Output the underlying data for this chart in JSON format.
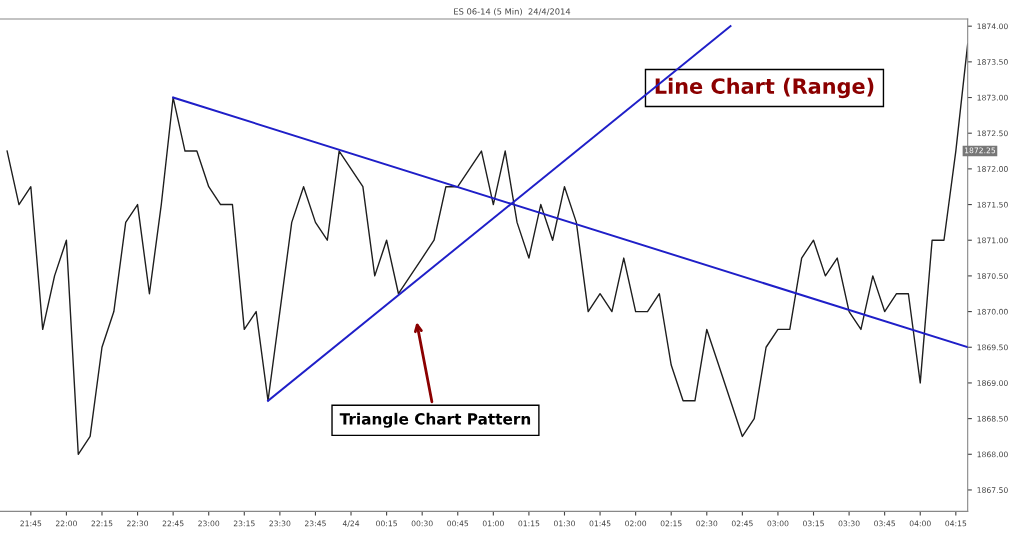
{
  "chart_data": {
    "type": "line",
    "title": "ES 06-14 (5 Min)  24/4/2014",
    "xlim": [
      "2014-04-23T21:32",
      "2014-04-24T04:20"
    ],
    "ylim": [
      1867.2,
      1874.1
    ],
    "xticks": [
      {
        "value": "2014-04-23T21:45",
        "label": "21:45"
      },
      {
        "value": "2014-04-23T22:00",
        "label": "22:00"
      },
      {
        "value": "2014-04-23T22:15",
        "label": "22:15"
      },
      {
        "value": "2014-04-23T22:30",
        "label": "22:30"
      },
      {
        "value": "2014-04-23T22:45",
        "label": "22:45"
      },
      {
        "value": "2014-04-23T23:00",
        "label": "23:00"
      },
      {
        "value": "2014-04-23T23:15",
        "label": "23:15"
      },
      {
        "value": "2014-04-23T23:30",
        "label": "23:30"
      },
      {
        "value": "2014-04-23T23:45",
        "label": "23:45"
      },
      {
        "value": "2014-04-24T00:00",
        "label": "4/24"
      },
      {
        "value": "2014-04-24T00:15",
        "label": "00:15"
      },
      {
        "value": "2014-04-24T00:30",
        "label": "00:30"
      },
      {
        "value": "2014-04-24T00:45",
        "label": "00:45"
      },
      {
        "value": "2014-04-24T01:00",
        "label": "01:00"
      },
      {
        "value": "2014-04-24T01:15",
        "label": "01:15"
      },
      {
        "value": "2014-04-24T01:30",
        "label": "01:30"
      },
      {
        "value": "2014-04-24T01:45",
        "label": "01:45"
      },
      {
        "value": "2014-04-24T02:00",
        "label": "02:00"
      },
      {
        "value": "2014-04-24T02:15",
        "label": "02:15"
      },
      {
        "value": "2014-04-24T02:30",
        "label": "02:30"
      },
      {
        "value": "2014-04-24T02:45",
        "label": "02:45"
      },
      {
        "value": "2014-04-24T03:00",
        "label": "03:00"
      },
      {
        "value": "2014-04-24T03:15",
        "label": "03:15"
      },
      {
        "value": "2014-04-24T03:30",
        "label": "03:30"
      },
      {
        "value": "2014-04-24T03:45",
        "label": "03:45"
      },
      {
        "value": "2014-04-24T04:00",
        "label": "04:00"
      },
      {
        "value": "2014-04-24T04:15",
        "label": "04:15"
      }
    ],
    "yticks": [
      {
        "value": 1867.5,
        "label": "1867.50"
      },
      {
        "value": 1868,
        "label": "1868.00"
      },
      {
        "value": 1868.5,
        "label": "1868.50"
      },
      {
        "value": 1869,
        "label": "1869.00"
      },
      {
        "value": 1869.5,
        "label": "1869.50"
      },
      {
        "value": 1870,
        "label": "1870.00"
      },
      {
        "value": 1870.5,
        "label": "1870.50"
      },
      {
        "value": 1871,
        "label": "1871.00"
      },
      {
        "value": 1871.5,
        "label": "1871.50"
      },
      {
        "value": 1872,
        "label": "1872.00"
      },
      {
        "value": 1872.5,
        "label": "1872.50"
      },
      {
        "value": 1873,
        "label": "1873.00"
      },
      {
        "value": 1873.5,
        "label": "1873.50"
      },
      {
        "value": 1874,
        "label": "1874.00"
      }
    ],
    "x": [
      "2014-04-23T21:35",
      "2014-04-23T21:40",
      "2014-04-23T21:45",
      "2014-04-23T21:50",
      "2014-04-23T21:55",
      "2014-04-23T22:00",
      "2014-04-23T22:05",
      "2014-04-23T22:10",
      "2014-04-23T22:15",
      "2014-04-23T22:20",
      "2014-04-23T22:25",
      "2014-04-23T22:30",
      "2014-04-23T22:35",
      "2014-04-23T22:40",
      "2014-04-23T22:45",
      "2014-04-23T22:50",
      "2014-04-23T22:55",
      "2014-04-23T23:00",
      "2014-04-23T23:05",
      "2014-04-23T23:10",
      "2014-04-23T23:15",
      "2014-04-23T23:20",
      "2014-04-23T23:25",
      "2014-04-23T23:30",
      "2014-04-23T23:35",
      "2014-04-23T23:40",
      "2014-04-23T23:45",
      "2014-04-23T23:50",
      "2014-04-23T23:55",
      "2014-04-24T00:00",
      "2014-04-24T00:05",
      "2014-04-24T00:10",
      "2014-04-24T00:15",
      "2014-04-24T00:20",
      "2014-04-24T00:25",
      "2014-04-24T00:30",
      "2014-04-24T00:35",
      "2014-04-24T00:40",
      "2014-04-24T00:45",
      "2014-04-24T00:50",
      "2014-04-24T00:55",
      "2014-04-24T01:00",
      "2014-04-24T01:05",
      "2014-04-24T01:10",
      "2014-04-24T01:15",
      "2014-04-24T01:20",
      "2014-04-24T01:25",
      "2014-04-24T01:30",
      "2014-04-24T01:35",
      "2014-04-24T01:40",
      "2014-04-24T01:45",
      "2014-04-24T01:50",
      "2014-04-24T01:55",
      "2014-04-24T02:00",
      "2014-04-24T02:05",
      "2014-04-24T02:10",
      "2014-04-24T02:15",
      "2014-04-24T02:20",
      "2014-04-24T02:25",
      "2014-04-24T02:30",
      "2014-04-24T02:35",
      "2014-04-24T02:40",
      "2014-04-24T02:45",
      "2014-04-24T02:50",
      "2014-04-24T02:55",
      "2014-04-24T03:00",
      "2014-04-24T03:05",
      "2014-04-24T03:10",
      "2014-04-24T03:15",
      "2014-04-24T03:20",
      "2014-04-24T03:25",
      "2014-04-24T03:30",
      "2014-04-24T03:35",
      "2014-04-24T03:40",
      "2014-04-24T03:45",
      "2014-04-24T03:50",
      "2014-04-24T03:55",
      "2014-04-24T04:00",
      "2014-04-24T04:05",
      "2014-04-24T04:10",
      "2014-04-24T04:15",
      "2014-04-24T04:20"
    ],
    "series": [
      {
        "color": "#1e1e1e",
        "values": [
          1872.25,
          1871.5,
          1871.75,
          1869.75,
          1870.5,
          1871.0,
          1868.0,
          1868.25,
          1869.5,
          1870.0,
          1871.25,
          1871.5,
          1870.25,
          1871.5,
          1873.0,
          1872.25,
          1872.25,
          1871.75,
          1871.5,
          1871.5,
          1869.75,
          1870.0,
          1868.75,
          1870.0,
          1871.25,
          1871.75,
          1871.25,
          1871.0,
          1872.25,
          1872.0,
          1871.75,
          1870.5,
          1871.0,
          1870.25,
          1870.5,
          1870.75,
          1871.0,
          1871.75,
          1871.75,
          1872.0,
          1872.25,
          1871.5,
          1872.25,
          1871.25,
          1870.75,
          1871.5,
          1871.0,
          1871.75,
          1871.25,
          1870.0,
          1870.25,
          1870.0,
          1870.75,
          1870.0,
          1870.0,
          1870.25,
          1869.25,
          1868.75,
          1868.75,
          1869.75,
          1869.25,
          1868.75,
          1868.25,
          1868.5,
          1869.5,
          1869.75,
          1869.75,
          1870.75,
          1871.0,
          1870.5,
          1870.75,
          1870.0,
          1869.75,
          1870.5,
          1870.0,
          1870.25,
          1870.25,
          1869.0,
          1871.0,
          1871.0,
          1872.25,
          1873.75
        ]
      },
      {
        "type": "line",
        "color": "#1f1fc8",
        "x": [
          "2014-04-23T22:45",
          "2014-04-24T04:20"
        ],
        "values": [
          1873.0,
          1869.5
        ]
      },
      {
        "type": "line",
        "color": "#1f1fc8",
        "x": [
          "2014-04-23T23:25",
          "2014-04-24T02:40"
        ],
        "values": [
          1868.75,
          1874.0
        ]
      }
    ],
    "annotations": [
      "Line Chart (Range)",
      "Triangle Chart Pattern",
      {
        "text": "1872.25",
        "x": "2014-04-24T04:15",
        "y": 1872.25
      }
    ]
  }
}
